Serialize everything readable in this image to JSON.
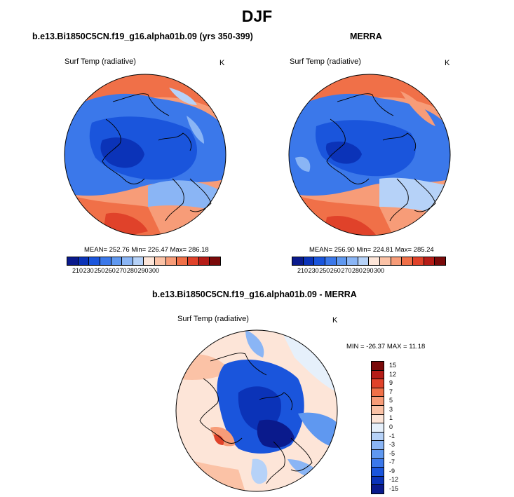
{
  "title": "DJF",
  "colors": {
    "abs": [
      "#0a1a8c",
      "#0b33b8",
      "#1a55dc",
      "#3b78ea",
      "#5f98f0",
      "#8ab5f5",
      "#b6d2f8",
      "#fde5d8",
      "#fbc2a6",
      "#f79c78",
      "#f07048",
      "#e0422a",
      "#b51c17",
      "#7a0a0a"
    ],
    "diff": [
      "#0a1a8c",
      "#0b33b8",
      "#1a55dc",
      "#3b78ea",
      "#5f98f0",
      "#8ab5f5",
      "#b6d2f8",
      "#e6f0fb",
      "#fde5d8",
      "#fbc2a6",
      "#f79c78",
      "#f07048",
      "#e0422a",
      "#b51c17",
      "#7a0a0a"
    ]
  },
  "panels": {
    "model": {
      "title": "b.e13.Bi1850C5CN.f19_g16.alpha01b.09 (yrs 350-399)",
      "variable": "Surf Temp (radiative)",
      "units": "K",
      "stats": "MEAN= 252.76   Min= 226.47   Max= 286.18",
      "colorbar_ticks": [
        "210",
        "230",
        "250",
        "260",
        "270",
        "280",
        "290",
        "300"
      ]
    },
    "obs": {
      "title": "MERRA",
      "variable": "Surf Temp (radiative)",
      "units": "K",
      "stats": "MEAN= 256.90   Min= 224.81   Max= 285.24",
      "colorbar_ticks": [
        "210",
        "230",
        "250",
        "260",
        "270",
        "280",
        "290",
        "300"
      ]
    },
    "diff": {
      "title": "b.e13.Bi1850C5CN.f19_g16.alpha01b.09 - MERRA",
      "variable": "Surf Temp (radiative)",
      "units": "K",
      "stats": "MIN = -26.37  MAX =  11.18",
      "colorbar_ticks": [
        "15",
        "12",
        "9",
        "7",
        "5",
        "3",
        "1",
        "0",
        "-1",
        "-3",
        "-5",
        "-7",
        "-9",
        "-12",
        "-15"
      ]
    }
  }
}
